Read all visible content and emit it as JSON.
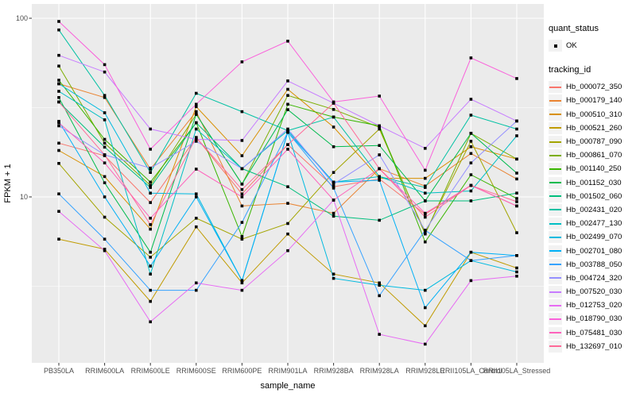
{
  "legend": {
    "quant_status_title": "quant_status",
    "quant_status_items": [
      {
        "label": "OK",
        "marker": "black-point"
      }
    ],
    "tracking_id_title": "tracking_id"
  },
  "theme": {
    "page_bg": "#FFFFFF",
    "panel_bg": "#EBEBEB",
    "grid_color": "#FFFFFF",
    "axis_text_color": "#4D4D4D",
    "axis_tick_color": "#333333",
    "title_color": "#000000",
    "point_color": "#000000",
    "legend_key_bg": "#F2F2F2"
  },
  "chart_data": {
    "type": "line",
    "title": "",
    "xlabel": "sample_name",
    "ylabel": "FPKM + 1",
    "y_scale": "log10",
    "ylim": [
      1.15,
      120
    ],
    "y_major_ticks": [
      100,
      10
    ],
    "y_minor_ticks": [
      31.62,
      3.162
    ],
    "grid": true,
    "legend_position": "right",
    "point_marker": "black-square",
    "categories": [
      "PB350LA",
      "RRIM600LA",
      "RRIM600LE",
      "RRIM600SE",
      "RRIM600PE",
      "RRIM901LA",
      "RRIM928BA",
      "RRIM928LA",
      "RRIM928LE",
      "RRII105LA_Control",
      "RRII105LA_Stressed"
    ],
    "series": [
      {
        "name": "Hb_000072_350",
        "color": "#F8766D",
        "values": [
          20,
          17,
          9.3,
          21.5,
          10.4,
          19.6,
          11.4,
          12.6,
          8.0,
          11.6,
          8.9
        ]
      },
      {
        "name": "Hb_000179_140",
        "color": "#EA8331",
        "values": [
          43,
          36,
          14.3,
          30,
          8.9,
          9.2,
          8.1,
          14.4,
          11.5,
          17.5,
          12.6
        ]
      },
      {
        "name": "Hb_000510_310",
        "color": "#D89000",
        "values": [
          18.2,
          13,
          6.6,
          32,
          17,
          40,
          24.6,
          12.7,
          12.7,
          19.1,
          16.3
        ]
      },
      {
        "name": "Hb_000521_260",
        "color": "#C09B00",
        "values": [
          5.8,
          5.1,
          2.6,
          6.8,
          3.3,
          6.2,
          3.7,
          3.3,
          1.9,
          4.9,
          4.0
        ]
      },
      {
        "name": "Hb_000787_090",
        "color": "#A3A500",
        "values": [
          15.4,
          7.7,
          4.6,
          7.6,
          5.8,
          7.1,
          13.7,
          24,
          6.3,
          20.5,
          6.3
        ]
      },
      {
        "name": "Hb_000861_070",
        "color": "#7CAE00",
        "values": [
          54,
          20,
          11.6,
          29,
          11.8,
          37,
          30.9,
          24.5,
          6.2,
          22.7,
          16.3
        ]
      },
      {
        "name": "Hb_001140_250",
        "color": "#39B600",
        "values": [
          45,
          21,
          12.1,
          26,
          6.0,
          33,
          28,
          25,
          5.6,
          13.3,
          9.8
        ]
      },
      {
        "name": "Hb_001152_030",
        "color": "#00BB4E",
        "values": [
          36,
          12,
          4.9,
          29,
          11.8,
          30.8,
          19.1,
          19.4,
          9.5,
          22.7,
          13.6
        ]
      },
      {
        "name": "Hb_001502_060",
        "color": "#00BF7D",
        "values": [
          34,
          19,
          11.3,
          26,
          14.4,
          11.4,
          7.8,
          7.4,
          9.5,
          9.5,
          10.5
        ]
      },
      {
        "name": "Hb_002431_020",
        "color": "#00C1A3",
        "values": [
          86,
          37,
          13.7,
          38,
          30,
          23.5,
          28,
          13,
          11.3,
          28.7,
          24
        ]
      },
      {
        "name": "Hb_002477_130",
        "color": "#00BFC4",
        "values": [
          39,
          27,
          3.7,
          24,
          14.4,
          23.5,
          12.1,
          13,
          10.5,
          10.8,
          22
        ]
      },
      {
        "name": "Hb_002499_070",
        "color": "#00BAE0",
        "values": [
          43,
          29.6,
          10.5,
          10.4,
          3.4,
          23,
          3.5,
          3.2,
          3.0,
          4.4,
          3.8
        ]
      },
      {
        "name": "Hb_002701_080",
        "color": "#00B0F6",
        "values": [
          26.5,
          10,
          4.1,
          10,
          3.4,
          23,
          12.1,
          12.4,
          2.4,
          4.9,
          4.7
        ]
      },
      {
        "name": "Hb_003788_050",
        "color": "#35A2FF",
        "values": [
          10.4,
          5.8,
          3.0,
          3.0,
          7.2,
          23,
          11.2,
          2.8,
          6.5,
          4.4,
          4.7
        ]
      },
      {
        "name": "Hb_004724_320",
        "color": "#9590FF",
        "values": [
          25,
          17.2,
          14.5,
          20.5,
          14.4,
          24,
          11.8,
          17.2,
          6.5,
          15.5,
          26.6
        ]
      },
      {
        "name": "Hb_007520_030",
        "color": "#C77CFF",
        "values": [
          62,
          50,
          24,
          21,
          20.7,
          44.6,
          33.5,
          25,
          18.7,
          35.2,
          26.6
        ]
      },
      {
        "name": "Hb_012753_020",
        "color": "#E76BF3",
        "values": [
          8.3,
          5.0,
          2.0,
          3.3,
          3.0,
          5.0,
          9.6,
          1.7,
          1.5,
          3.4,
          3.6
        ]
      },
      {
        "name": "Hb_018790_030",
        "color": "#FA62DB",
        "values": [
          96,
          55,
          18.5,
          33,
          57,
          74.5,
          34,
          36.7,
          14.1,
          60,
          46
        ]
      },
      {
        "name": "Hb_075481_030",
        "color": "#FF62BC",
        "values": [
          26,
          15.5,
          7.6,
          14.3,
          10,
          18.5,
          9.6,
          14.4,
          8.1,
          11.6,
          8.9
        ]
      },
      {
        "name": "Hb_132697_010",
        "color": "#FF6A98",
        "values": [
          34,
          17.2,
          7.0,
          21.5,
          11,
          19.6,
          33.5,
          14.4,
          7.7,
          11.6,
          9.4
        ]
      }
    ]
  }
}
